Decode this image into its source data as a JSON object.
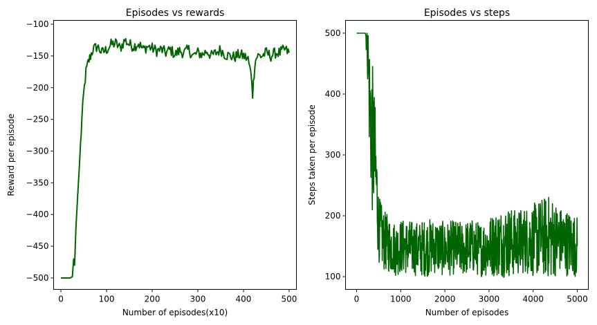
{
  "line_color": "#006400",
  "chart_data": [
    {
      "type": "line",
      "title": "Episodes vs rewards",
      "xlabel": "Number of episodes(x10)",
      "ylabel": "Reward per episode",
      "xlim": [
        -16,
        516
      ],
      "ylim": [
        -518,
        -94
      ],
      "xticks": [
        0,
        100,
        200,
        300,
        400,
        500
      ],
      "yticks": [
        -500,
        -450,
        -400,
        -350,
        -300,
        -250,
        -200,
        -150,
        -100
      ],
      "grid": false,
      "series": [
        {
          "x": [
            0,
            10,
            20,
            25,
            28,
            30,
            33,
            36,
            40,
            43,
            46,
            50,
            55,
            60,
            65,
            70,
            80,
            90,
            100,
            110,
            120,
            130,
            140,
            150,
            160,
            170,
            180,
            190,
            200,
            210,
            220,
            230,
            240,
            250,
            260,
            270,
            280,
            290,
            300,
            310,
            320,
            330,
            340,
            350,
            360,
            370,
            380,
            390,
            400,
            410,
            418,
            420,
            425,
            430,
            440,
            450,
            460,
            470,
            480,
            490,
            500
          ],
          "y": [
            -500,
            -500,
            -500,
            -498,
            -470,
            -480,
            -420,
            -380,
            -330,
            -290,
            -250,
            -210,
            -175,
            -160,
            -150,
            -140,
            -135,
            -145,
            -140,
            -132,
            -130,
            -138,
            -125,
            -132,
            -135,
            -130,
            -140,
            -135,
            -138,
            -142,
            -140,
            -145,
            -140,
            -148,
            -142,
            -145,
            -140,
            -150,
            -145,
            -148,
            -142,
            -150,
            -145,
            -140,
            -148,
            -150,
            -152,
            -148,
            -150,
            -155,
            -185,
            -210,
            -160,
            -150,
            -150,
            -145,
            -150,
            -145,
            -145,
            -140,
            -145
          ]
        }
      ]
    },
    {
      "type": "line",
      "title": "Episodes vs steps",
      "xlabel": "Number of episodes",
      "ylabel": "Steps taken per episode",
      "xlim": [
        -250,
        5250
      ],
      "ylim": [
        79,
        521
      ],
      "xticks": [
        0,
        1000,
        2000,
        3000,
        4000,
        5000
      ],
      "yticks": [
        100,
        200,
        300,
        400,
        500
      ],
      "grid": false,
      "series": [
        {
          "x": [
            0,
            200,
            250,
            300,
            350,
            400,
            450,
            500,
            600,
            700,
            800,
            900,
            1000,
            1200,
            1400,
            1600,
            1800,
            2000,
            2200,
            2400,
            2600,
            2800,
            3000,
            3200,
            3400,
            3600,
            3800,
            4000,
            4200,
            4400,
            4600,
            4800,
            5000
          ],
          "y": [
            500,
            500,
            480,
            380,
            330,
            300,
            250,
            180,
            160,
            155,
            150,
            145,
            150,
            148,
            145,
            148,
            150,
            145,
            148,
            145,
            150,
            145,
            150,
            155,
            158,
            155,
            160,
            160,
            165,
            165,
            160,
            155,
            150
          ],
          "noise_amplitude": [
            0,
            0,
            60,
            110,
            130,
            110,
            90,
            55,
            50,
            48,
            45,
            45,
            45,
            45,
            45,
            48,
            45,
            45,
            45,
            45,
            45,
            45,
            50,
            55,
            60,
            55,
            55,
            60,
            65,
            70,
            55,
            55,
            50
          ]
        }
      ]
    }
  ]
}
